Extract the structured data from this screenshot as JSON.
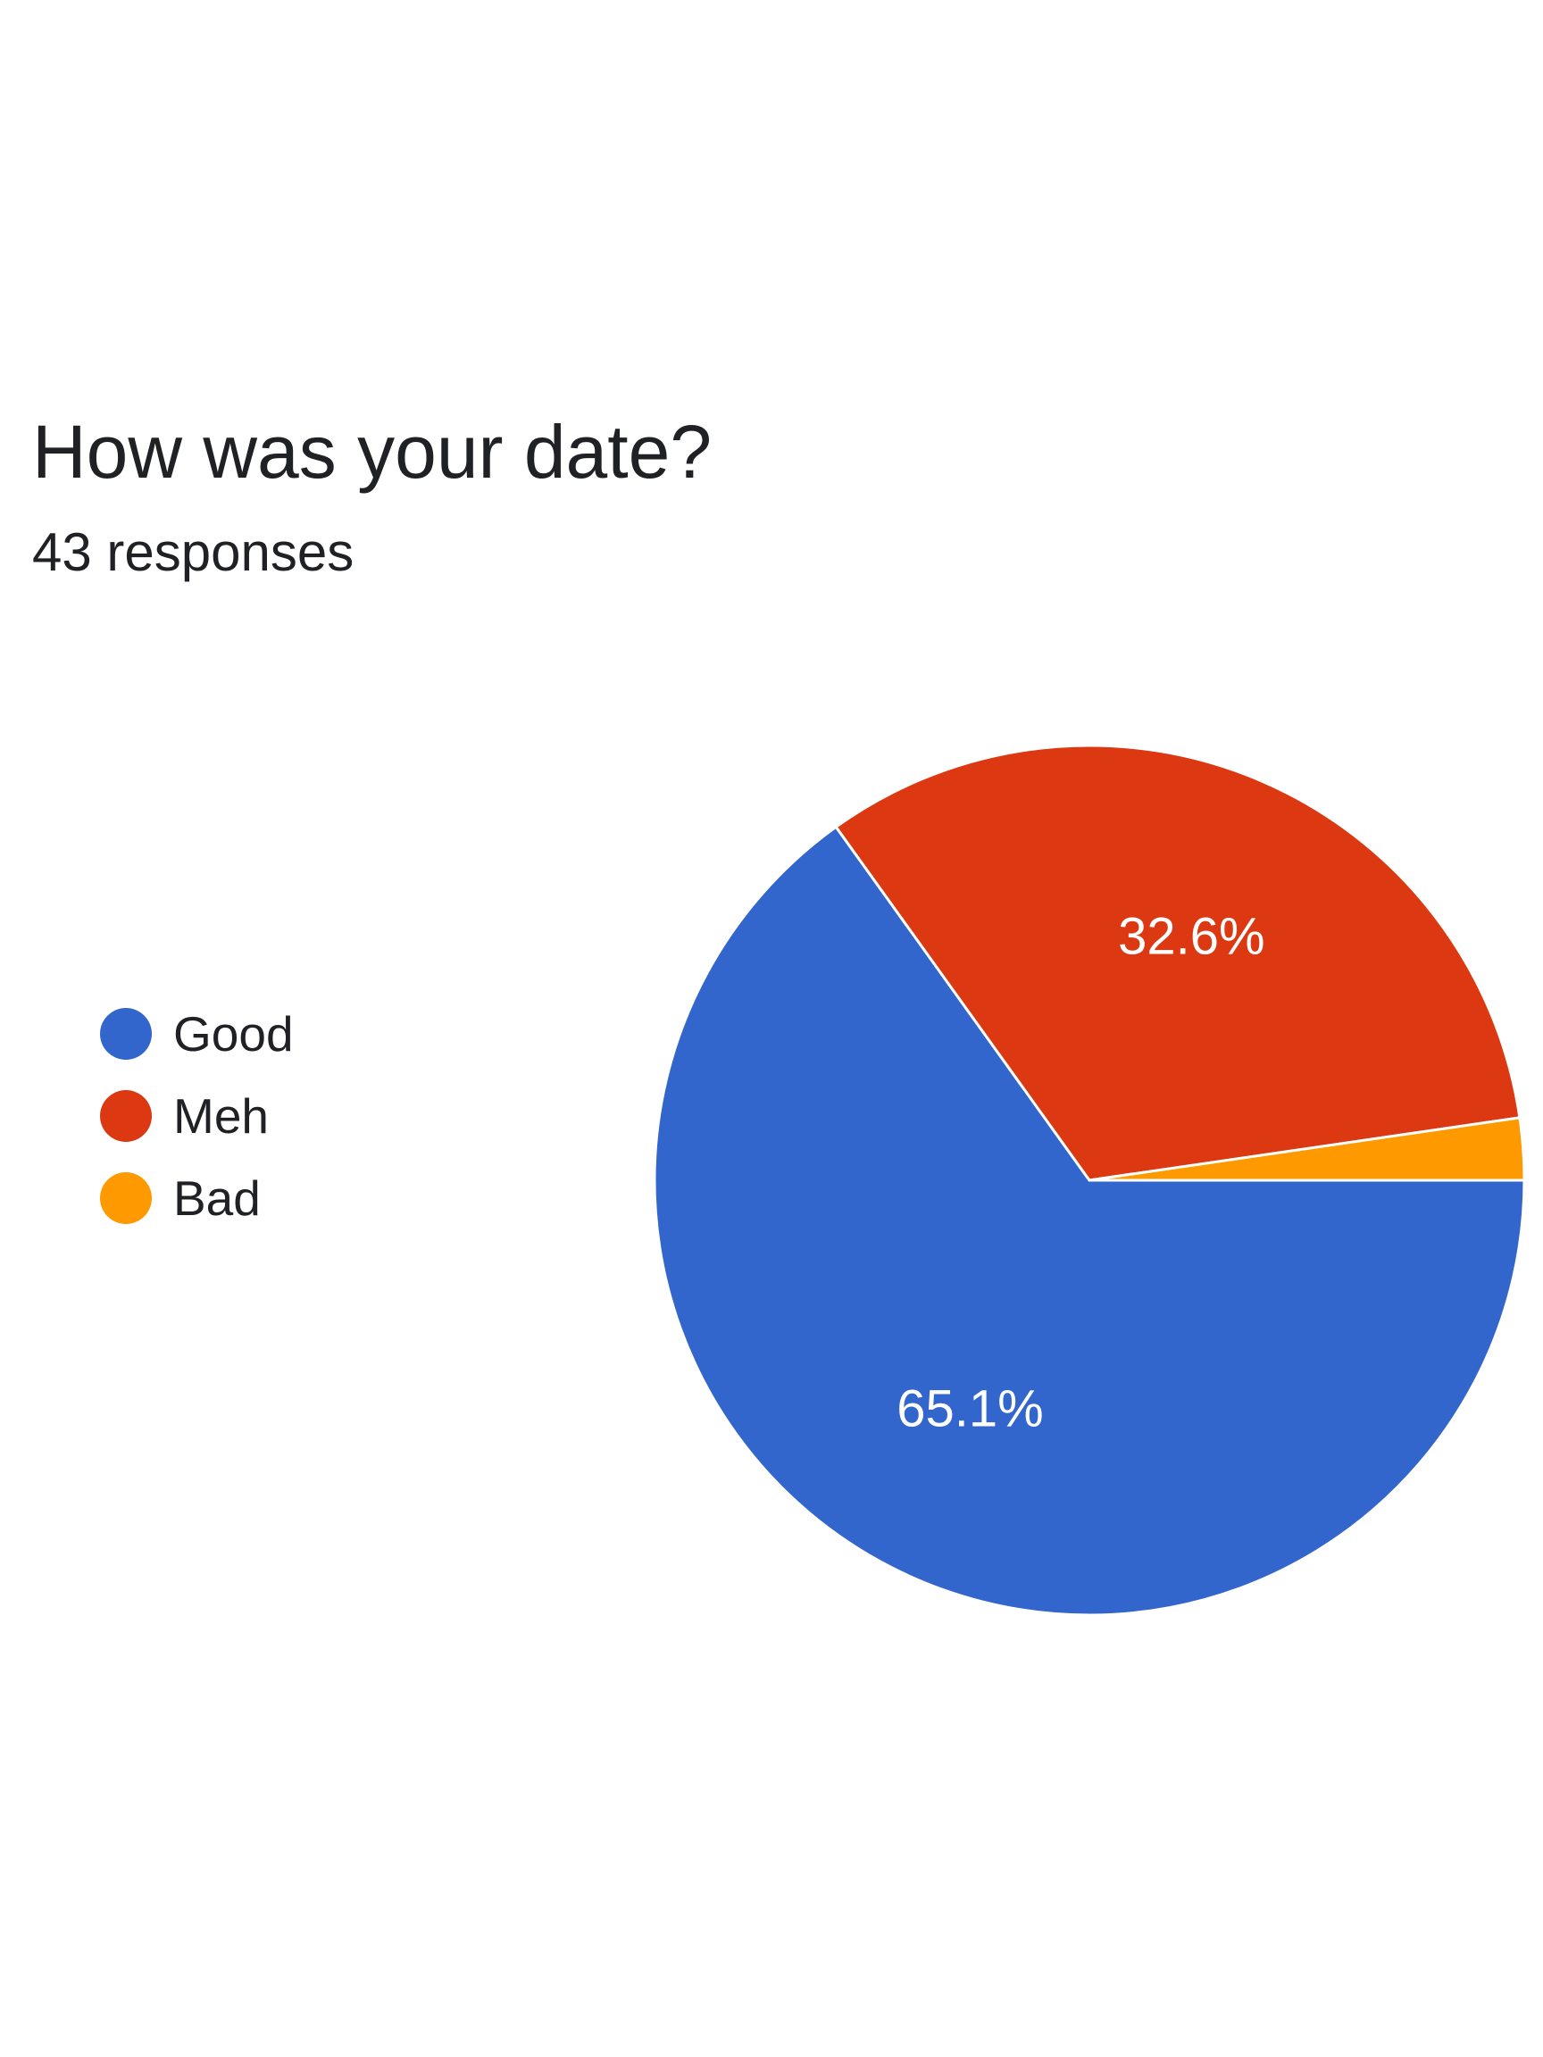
{
  "question": {
    "title": "How was your date?",
    "responses": "43 responses"
  },
  "chart_data": {
    "type": "pie",
    "title": "How was your date?",
    "subtitle": "43 responses",
    "categories": [
      "Good",
      "Meh",
      "Bad"
    ],
    "values": [
      65.1,
      32.6,
      2.3
    ],
    "value_labels": [
      "65.1%",
      "32.6%",
      ""
    ],
    "colors": [
      "#3366cc",
      "#dc3912",
      "#ff9900"
    ],
    "legend_position": "left"
  },
  "legend": {
    "items": [
      {
        "label": "Good",
        "color": "#3366cc"
      },
      {
        "label": "Meh",
        "color": "#dc3912"
      },
      {
        "label": "Bad",
        "color": "#ff9900"
      }
    ]
  }
}
